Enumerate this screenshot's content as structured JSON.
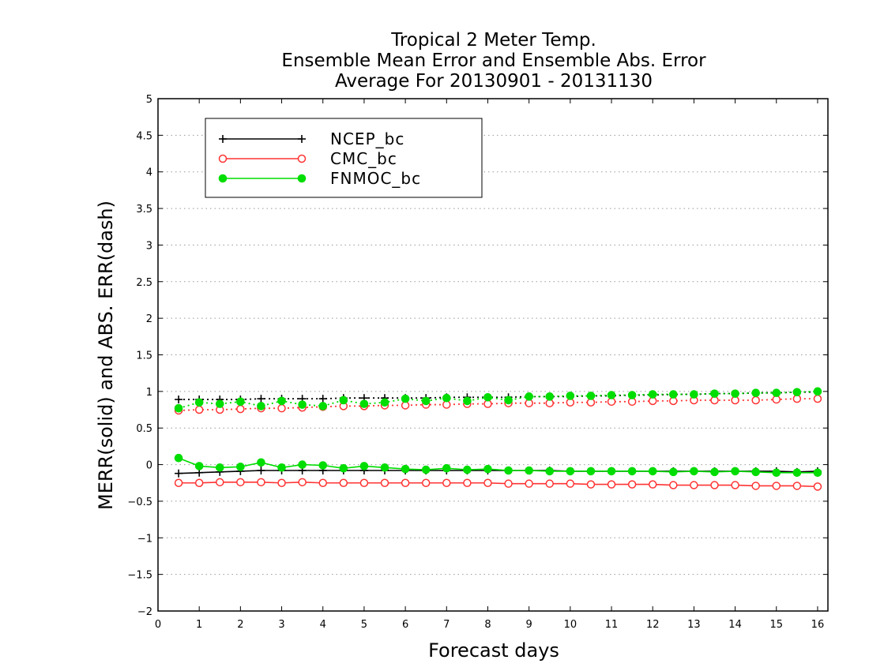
{
  "chart_data": {
    "type": "line",
    "title": [
      "Tropical 2 Meter Temp.",
      "Ensemble Mean Error and Ensemble Abs. Error",
      "Average For 20130901 - 20131130"
    ],
    "xlabel": "Forecast days",
    "ylabel": "MERR(solid) and ABS. ERR(dash)",
    "xlim": [
      0,
      16.25
    ],
    "ylim": [
      -2,
      5
    ],
    "xticks": [
      0,
      1,
      2,
      3,
      4,
      5,
      6,
      7,
      8,
      9,
      10,
      11,
      12,
      13,
      14,
      15,
      16
    ],
    "xtick_labels": [
      "0",
      "1",
      "2",
      "3",
      "4",
      "5",
      "6",
      "7",
      "8",
      "9",
      "10",
      "11",
      "12",
      "13",
      "14",
      "15",
      "16"
    ],
    "yticks": [
      -2,
      -1.5,
      -1,
      -0.5,
      0,
      0.5,
      1,
      1.5,
      2,
      2.5,
      3,
      3.5,
      4,
      4.5,
      5
    ],
    "ytick_labels": [
      "−2",
      "−1.5",
      "−1",
      "−0.5",
      "0",
      "0.5",
      "1",
      "1.5",
      "2",
      "2.5",
      "3",
      "3.5",
      "4",
      "4.5",
      "5"
    ],
    "grid": true,
    "legend_position": "top-left",
    "x": [
      0.5,
      1,
      1.5,
      2,
      2.5,
      3,
      3.5,
      4,
      4.5,
      5,
      5.5,
      6,
      6.5,
      7,
      7.5,
      8,
      8.5,
      9,
      9.5,
      10,
      10.5,
      11,
      11.5,
      12,
      12.5,
      13,
      13.5,
      14,
      14.5,
      15,
      15.5,
      16
    ],
    "series": [
      {
        "name": "NCEP_bc",
        "color": "#000000",
        "marker": "plus",
        "merr": [
          -0.12,
          -0.11,
          -0.1,
          -0.09,
          -0.08,
          -0.08,
          -0.08,
          -0.08,
          -0.08,
          -0.08,
          -0.08,
          -0.08,
          -0.08,
          -0.08,
          -0.08,
          -0.08,
          -0.08,
          -0.08,
          -0.08,
          -0.09,
          -0.09,
          -0.09,
          -0.09,
          -0.09,
          -0.09,
          -0.09,
          -0.09,
          -0.09,
          -0.09,
          -0.09,
          -0.1,
          -0.09
        ],
        "abs_err": [
          0.89,
          0.89,
          0.89,
          0.89,
          0.9,
          0.9,
          0.9,
          0.9,
          0.91,
          0.91,
          0.91,
          0.91,
          0.91,
          0.92,
          0.92,
          0.92,
          0.92,
          0.93,
          0.93,
          0.93,
          0.94,
          0.94,
          0.95,
          0.95,
          0.96,
          0.96,
          0.97,
          0.97,
          0.98,
          0.98,
          0.99,
          0.99
        ]
      },
      {
        "name": "CMC_bc",
        "color": "#ff3333",
        "marker": "open-circle",
        "merr": [
          -0.25,
          -0.25,
          -0.24,
          -0.24,
          -0.24,
          -0.25,
          -0.24,
          -0.25,
          -0.25,
          -0.25,
          -0.25,
          -0.25,
          -0.25,
          -0.25,
          -0.25,
          -0.25,
          -0.26,
          -0.26,
          -0.26,
          -0.26,
          -0.27,
          -0.27,
          -0.27,
          -0.27,
          -0.28,
          -0.28,
          -0.28,
          -0.28,
          -0.29,
          -0.29,
          -0.29,
          -0.3
        ],
        "abs_err": [
          0.74,
          0.75,
          0.75,
          0.76,
          0.77,
          0.77,
          0.78,
          0.79,
          0.8,
          0.8,
          0.81,
          0.81,
          0.82,
          0.82,
          0.83,
          0.83,
          0.84,
          0.84,
          0.84,
          0.85,
          0.85,
          0.86,
          0.86,
          0.87,
          0.87,
          0.88,
          0.88,
          0.88,
          0.88,
          0.89,
          0.9,
          0.9
        ]
      },
      {
        "name": "FNMOC_bc",
        "color": "#00dd00",
        "marker": "filled-circle",
        "merr": [
          0.09,
          -0.02,
          -0.04,
          -0.03,
          0.03,
          -0.04,
          0.0,
          -0.01,
          -0.05,
          -0.02,
          -0.04,
          -0.06,
          -0.07,
          -0.05,
          -0.07,
          -0.06,
          -0.08,
          -0.08,
          -0.09,
          -0.09,
          -0.09,
          -0.09,
          -0.09,
          -0.09,
          -0.1,
          -0.09,
          -0.1,
          -0.09,
          -0.1,
          -0.11,
          -0.11,
          -0.11
        ],
        "abs_err": [
          0.77,
          0.85,
          0.83,
          0.86,
          0.8,
          0.87,
          0.82,
          0.8,
          0.88,
          0.83,
          0.85,
          0.9,
          0.87,
          0.91,
          0.87,
          0.92,
          0.88,
          0.93,
          0.93,
          0.94,
          0.94,
          0.95,
          0.95,
          0.96,
          0.96,
          0.96,
          0.97,
          0.97,
          0.98,
          0.98,
          0.99,
          1.0
        ]
      }
    ]
  }
}
